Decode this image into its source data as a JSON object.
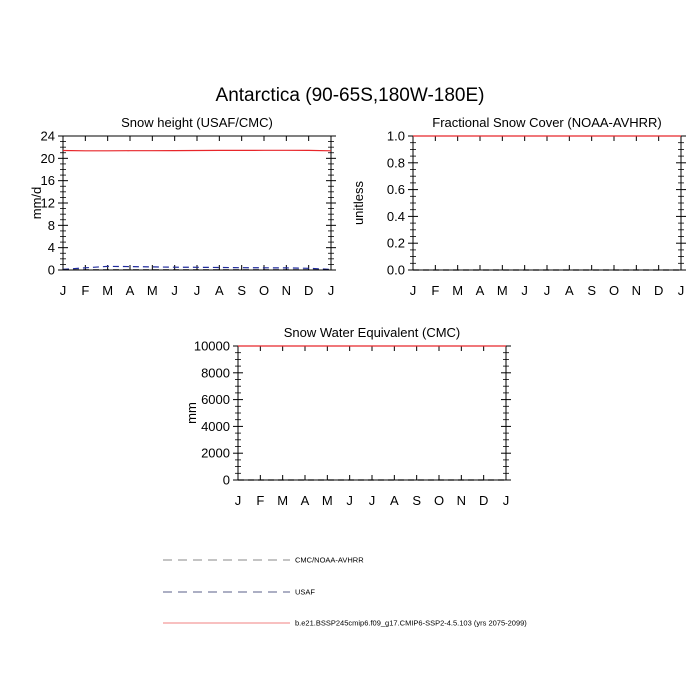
{
  "figure": {
    "title": "Antarctica (90-65S,180W-180E)"
  },
  "chart_data": [
    {
      "type": "line",
      "title": "Snow height (USAF/CMC)",
      "xlabel": "",
      "ylabel": "mm/d",
      "x": [
        "J",
        "F",
        "M",
        "A",
        "M",
        "J",
        "J",
        "A",
        "S",
        "O",
        "N",
        "D",
        "J"
      ],
      "ylim": [
        0,
        24
      ],
      "yticks": [
        0,
        4,
        8,
        12,
        16,
        20,
        24
      ],
      "grid": false,
      "series": [
        {
          "name": "b.e21.BSSP245cmip6.f09_g17.CMIP6-SSP2-4.5.103 (yrs 2075-2099)",
          "color": "#e8262a",
          "dash": "solid",
          "values": [
            21.4,
            21.35,
            21.35,
            21.36,
            21.37,
            21.38,
            21.4,
            21.42,
            21.42,
            21.43,
            21.44,
            21.42,
            21.35
          ]
        },
        {
          "name": "USAF",
          "color": "#1f2a9c",
          "dash": "dashed",
          "values": [
            0.1,
            0.4,
            0.65,
            0.6,
            0.55,
            0.5,
            0.48,
            0.45,
            0.42,
            0.4,
            0.38,
            0.3,
            0.1
          ]
        },
        {
          "name": "CMC/NOAA-AVHRR",
          "color": "#000000",
          "dash": "dashed",
          "values": [
            0.02,
            0.02,
            0.02,
            0.02,
            0.02,
            0.02,
            0.02,
            0.02,
            0.02,
            0.02,
            0.02,
            0.02,
            0.02
          ]
        }
      ]
    },
    {
      "type": "line",
      "title": "Fractional Snow Cover (NOAA-AVHRR)",
      "xlabel": "",
      "ylabel": "unitless",
      "x": [
        "J",
        "F",
        "M",
        "A",
        "M",
        "J",
        "J",
        "A",
        "S",
        "O",
        "N",
        "D",
        "J"
      ],
      "ylim": [
        0,
        1
      ],
      "yticks": [
        "0.0",
        "0.2",
        "0.4",
        "0.6",
        "0.8",
        "1.0"
      ],
      "grid": false,
      "series": [
        {
          "name": "b.e21.BSSP245cmip6.f09_g17.CMIP6-SSP2-4.5.103 (yrs 2075-2099)",
          "color": "#e8262a",
          "dash": "solid",
          "values": [
            1,
            1,
            1,
            1,
            1,
            1,
            1,
            1,
            1,
            1,
            1,
            1,
            1
          ]
        },
        {
          "name": "CMC/NOAA-AVHRR",
          "color": "#000000",
          "dash": "dashed",
          "values": [
            0,
            0,
            0,
            0,
            0,
            0,
            0,
            0,
            0,
            0,
            0,
            0,
            0
          ]
        }
      ]
    },
    {
      "type": "line",
      "title": "Snow Water Equivalent (CMC)",
      "xlabel": "",
      "ylabel": "mm",
      "x": [
        "J",
        "F",
        "M",
        "A",
        "M",
        "J",
        "J",
        "A",
        "S",
        "O",
        "N",
        "D",
        "J"
      ],
      "ylim": [
        0,
        10000
      ],
      "yticks": [
        0,
        2000,
        4000,
        6000,
        8000,
        10000
      ],
      "grid": false,
      "series": [
        {
          "name": "b.e21.BSSP245cmip6.f09_g17.CMIP6-SSP2-4.5.103 (yrs 2075-2099)",
          "color": "#e8262a",
          "dash": "solid",
          "values": [
            10000,
            10000,
            10000,
            10000,
            10000,
            10000,
            10000,
            10000,
            10000,
            10000,
            10000,
            10000,
            10000
          ]
        },
        {
          "name": "CMC/NOAA-AVHRR",
          "color": "#000000",
          "dash": "dashed",
          "values": [
            0,
            0,
            0,
            0,
            0,
            0,
            0,
            0,
            0,
            0,
            0,
            0,
            0
          ]
        }
      ]
    }
  ],
  "legend": {
    "placement": "bottom",
    "items": [
      {
        "label": "CMC/NOAA-AVHRR",
        "color": "#888888",
        "dash": "dashed"
      },
      {
        "label": "USAF",
        "color": "#5a5f8a",
        "dash": "dashed"
      },
      {
        "label": "b.e21.BSSP245cmip6.f09_g17.CMIP6-SSP2-4.5.103 (yrs 2075-2099)",
        "color": "#f08080",
        "dash": "solid"
      }
    ]
  }
}
